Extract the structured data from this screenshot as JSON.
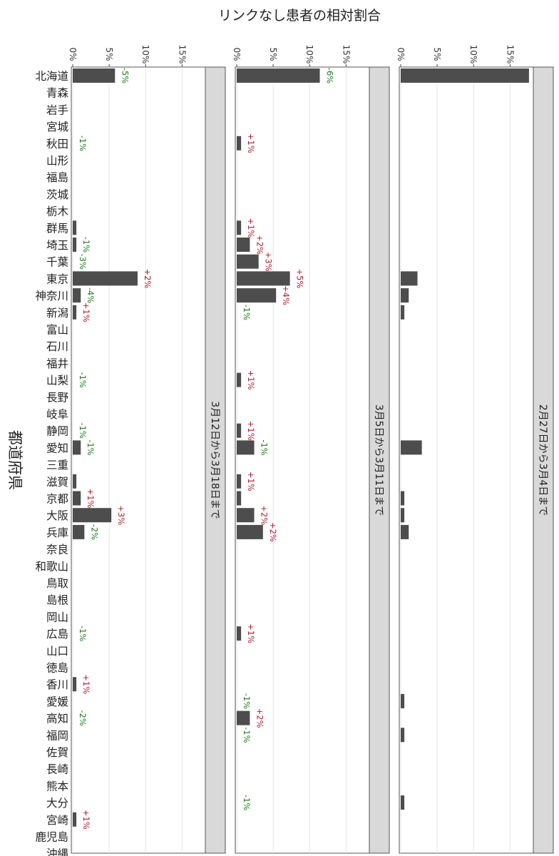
{
  "chart_data": {
    "type": "bar",
    "title": "リンクなし患者の相対割合",
    "ylabel": "都道府県",
    "value_axis": {
      "lim": [
        0,
        18
      ],
      "ticks": [
        0,
        5,
        10,
        15
      ],
      "tick_labels": [
        "0%",
        "5%",
        "10%",
        "15%"
      ]
    },
    "grid": true,
    "colors": {
      "bar": "#4d4d4d",
      "increase": "#b2182b",
      "decrease": "#1a7a1a",
      "strip": "#d9d9d9"
    },
    "categories": [
      "北海道",
      "青森",
      "岩手",
      "宮城",
      "秋田",
      "山形",
      "福島",
      "茨城",
      "栃木",
      "群馬",
      "埼玉",
      "千葉",
      "東京",
      "神奈川",
      "新潟",
      "富山",
      "石川",
      "福井",
      "山梨",
      "長野",
      "岐阜",
      "静岡",
      "愛知",
      "三重",
      "滋賀",
      "京都",
      "大阪",
      "兵庫",
      "奈良",
      "和歌山",
      "鳥取",
      "島根",
      "岡山",
      "広島",
      "山口",
      "徳島",
      "香川",
      "愛媛",
      "高知",
      "福岡",
      "佐賀",
      "長崎",
      "熊本",
      "大分",
      "宮崎",
      "鹿児島",
      "沖縄"
    ],
    "series": [
      {
        "name": "3月12日から3月18日まで",
        "values": [
          5.8,
          0,
          0,
          0,
          0,
          0,
          0,
          0,
          0,
          0.5,
          0.5,
          0,
          8.9,
          1.1,
          0.5,
          0,
          0,
          0,
          0,
          0,
          0,
          0,
          1.1,
          0,
          0.5,
          1.1,
          5.3,
          1.6,
          0,
          0,
          0,
          0,
          0,
          0,
          0,
          0,
          0.5,
          0,
          0,
          0,
          0,
          0,
          0,
          0,
          0.5,
          0,
          0
        ],
        "annotations": [
          "-5%",
          "",
          "",
          "",
          "-1%",
          "",
          "",
          "",
          "",
          "",
          "-1%",
          "-3%",
          "+2%",
          "-4%",
          "+1%",
          "",
          "",
          "",
          "-1%",
          "",
          "",
          "-1%",
          "-1%",
          "",
          "",
          "+1%",
          "+3%",
          "-2%",
          "",
          "",
          "",
          "",
          "",
          "-1%",
          "",
          "",
          "+1%",
          "",
          "-2%",
          "",
          "",
          "",
          "",
          "",
          "+1%",
          "",
          ""
        ]
      },
      {
        "name": "3月5日から3月11日まで",
        "values": [
          11.4,
          0,
          0,
          0,
          0.6,
          0,
          0,
          0,
          0,
          0.6,
          1.8,
          3.0,
          7.3,
          5.4,
          0,
          0,
          0,
          0,
          0.6,
          0,
          0,
          0.6,
          2.4,
          0,
          0.6,
          0.6,
          2.4,
          3.6,
          0,
          0,
          0,
          0,
          0,
          0.6,
          0,
          0,
          0,
          0,
          1.8,
          0,
          0,
          0,
          0,
          0,
          0,
          0,
          0
        ],
        "annotations": [
          "-6%",
          "",
          "",
          "",
          "+1%",
          "",
          "",
          "",
          "",
          "+1%",
          "+2%",
          "+3%",
          "+5%",
          "+4%",
          "-1%",
          "",
          "",
          "",
          "+1%",
          "",
          "",
          "+1%",
          "-1%",
          "",
          "+1%",
          "",
          "+2%",
          "+2%",
          "",
          "",
          "",
          "",
          "",
          "+1%",
          "",
          "",
          "",
          "-1%",
          "+2%",
          "-1%",
          "",
          "",
          "",
          "-1%",
          "",
          "",
          ""
        ]
      },
      {
        "name": "2月27日から3月4日まで",
        "values": [
          17.6,
          0,
          0,
          0,
          0,
          0,
          0,
          0,
          0,
          0,
          0,
          0,
          2.3,
          1.1,
          0.5,
          0,
          0,
          0,
          0,
          0,
          0,
          0,
          2.9,
          0,
          0,
          0.5,
          0.5,
          1.1,
          0,
          0,
          0,
          0,
          0,
          0,
          0,
          0,
          0,
          0.5,
          0,
          0.5,
          0,
          0,
          0,
          0.5,
          0,
          0,
          0
        ],
        "annotations": []
      }
    ]
  }
}
